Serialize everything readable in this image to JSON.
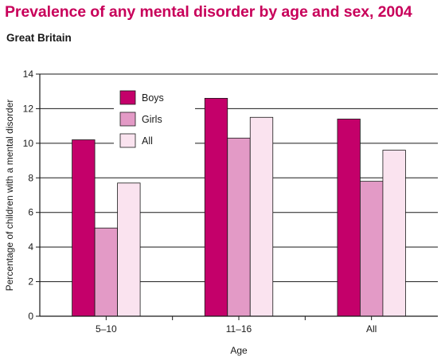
{
  "title": "Prevalence of any mental disorder by age and sex, 2004",
  "subtitle": "Great Britain",
  "chart_data": {
    "type": "bar",
    "categories": [
      "5–10",
      "11–16",
      "All"
    ],
    "series": [
      {
        "name": "Boys",
        "values": [
          10.2,
          12.6,
          11.4
        ],
        "color": "#c4006a"
      },
      {
        "name": "Girls",
        "values": [
          5.1,
          10.3,
          7.8
        ],
        "color": "#e39ac6"
      },
      {
        "name": "All",
        "values": [
          7.7,
          11.5,
          9.6
        ],
        "color": "#fae3ef"
      }
    ],
    "xlabel": "Age",
    "ylabel": "Percentage of children with a mental disorder",
    "ylim": [
      0,
      14
    ],
    "yticks": [
      0,
      2,
      4,
      6,
      8,
      10,
      12,
      14
    ],
    "grid": true,
    "legend": "top-left inside plot"
  }
}
